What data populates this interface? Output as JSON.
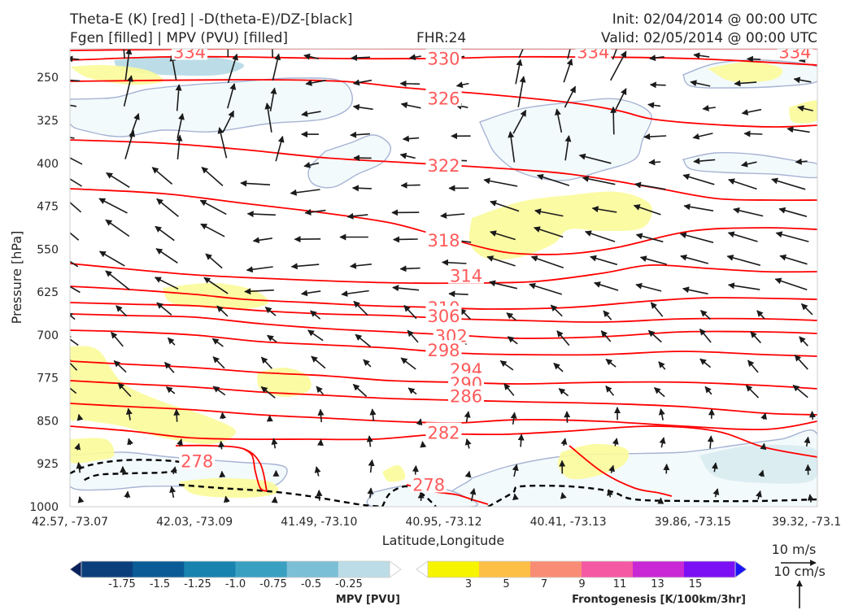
{
  "header": {
    "line1_left": "Theta-E (K) [red] | -D(theta-E)/DZ-[black]",
    "line2_left": "Fgen [filled] | MPV (PVU) [filled]",
    "fhr": "FHR:24",
    "init": "Init: 02/04/2014 @ 00:00 UTC",
    "valid": "Valid: 02/05/2014 @ 00:00 UTC"
  },
  "colors": {
    "theta_e": "#ff0000",
    "theta_e_label": "#ff5a5a",
    "neg_dthetae_dz": "#000000",
    "mpv_outline": "#a7b4d4",
    "mpv_fill": "#f3fafb",
    "fgen_fill": "#fbfb9a",
    "wind_arrow": "#1a1a1a"
  },
  "chart_data": {
    "type": "cross-section",
    "xlabel": "Latitude,Longitude",
    "ylabel": "Pressure [hPa]",
    "x_ticks": [
      "42.57, -73.07",
      "42.03, -73.09",
      "41.49, -73.10",
      "40.95, -73.12",
      "40.41, -73.13",
      "39.86, -73.15",
      "39.32, -73.1"
    ],
    "y_ticks": [
      250,
      325,
      400,
      475,
      550,
      625,
      700,
      775,
      850,
      925,
      1000
    ],
    "ylim": [
      1000,
      200
    ],
    "y_inverted": true,
    "theta_e_contours_K": [
      278,
      282,
      286,
      290,
      294,
      298,
      302,
      306,
      310,
      314,
      318,
      322,
      326,
      330,
      334
    ],
    "theta_e_labels": [
      {
        "text": "334",
        "x": 0.16,
        "p": 205
      },
      {
        "text": "330",
        "x": 0.5,
        "p": 216
      },
      {
        "text": "334",
        "x": 0.7,
        "p": 205
      },
      {
        "text": "334",
        "x": 0.97,
        "p": 205
      },
      {
        "text": "326",
        "x": 0.5,
        "p": 286
      },
      {
        "text": "322",
        "x": 0.5,
        "p": 403
      },
      {
        "text": "318",
        "x": 0.5,
        "p": 534
      },
      {
        "text": "314",
        "x": 0.53,
        "p": 596
      },
      {
        "text": "310",
        "x": 0.5,
        "p": 652
      },
      {
        "text": "306",
        "x": 0.5,
        "p": 666
      },
      {
        "text": "302",
        "x": 0.51,
        "p": 701
      },
      {
        "text": "298",
        "x": 0.5,
        "p": 726
      },
      {
        "text": "294",
        "x": 0.53,
        "p": 760
      },
      {
        "text": "290",
        "x": 0.53,
        "p": 784
      },
      {
        "text": "286",
        "x": 0.53,
        "p": 806
      },
      {
        "text": "282",
        "x": 0.5,
        "p": 870
      },
      {
        "text": "278",
        "x": 0.17,
        "p": 920
      },
      {
        "text": "278",
        "x": 0.48,
        "p": 961
      }
    ],
    "wind_scale": {
      "horizontal": "10 m/s",
      "vertical": "10 cm/s"
    },
    "colorbars": [
      {
        "title": "MPV [PVU]",
        "ticks": [
          "-1.75",
          "-1.5",
          "-1.25",
          "-1.0",
          "-0.75",
          "-0.5",
          "-0.25"
        ],
        "colors": [
          "#08215a",
          "#0b3f7c",
          "#0b5c96",
          "#1883ae",
          "#3aa0c2",
          "#7bbfd6",
          "#bcdde7",
          "#ffffff"
        ]
      },
      {
        "title": "Frontogenesis [K/100km/3hr]",
        "ticks": [
          "3",
          "5",
          "7",
          "9",
          "11",
          "13",
          "15"
        ],
        "colors": [
          "#ffffff",
          "#f7f400",
          "#fdbf45",
          "#f98c74",
          "#f559a3",
          "#c829d4",
          "#7b10f5",
          "#1c14f5"
        ]
      }
    ]
  }
}
